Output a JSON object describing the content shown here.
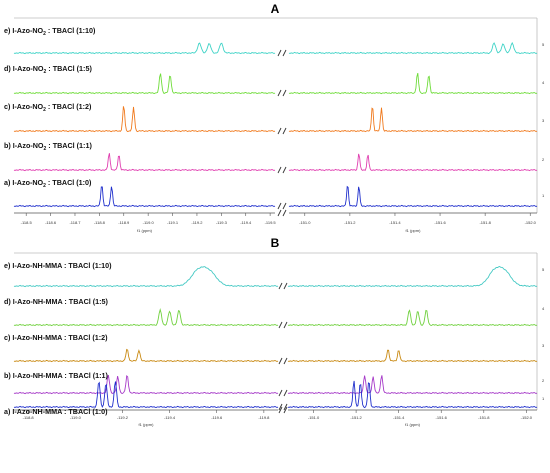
{
  "chart_data": [
    {
      "panel": "A",
      "type": "line",
      "xlabel": "f1 (ppm)",
      "x_ranges": [
        [
          -118.45,
          -119.52
        ],
        [
          -150.93,
          -152.03
        ]
      ],
      "ticks_left": [
        "-118.5",
        "-118.6",
        "-118.7",
        "-118.8",
        "-118.9",
        "-119.0",
        "-119.1",
        "-119.2",
        "-119.3",
        "-119.4",
        "-119.5"
      ],
      "ticks_right": [
        "-151.0",
        "-151.2",
        "-151.4",
        "-151.6",
        "-151.8",
        "-152.0"
      ],
      "right_axis_labels": [
        "5",
        "4",
        "3",
        "2",
        "1"
      ],
      "series": [
        {
          "name": "e) I-Azo-NO2 : TBACl (1:10)",
          "label_main": "e) I-Azo-NO",
          "label_sub": "2",
          "label_tail": " : TBACl (1:10)",
          "color": "#3fd3c7",
          "peaks_left": [
            -119.21,
            -119.25,
            -119.3
          ],
          "peaks_right": [
            -151.84,
            -151.88,
            -151.92
          ],
          "height": 10,
          "width": 0.014
        },
        {
          "name": "d) I-Azo-NO2 : TBACl (1:5)",
          "label_main": "d) I-Azo-NO",
          "label_sub": "2",
          "label_tail": " : TBACl (1:5)",
          "color": "#6fdc3a",
          "peaks_left": [
            -119.05,
            -119.09
          ],
          "peaks_right": [
            -151.5,
            -151.55
          ],
          "height": 20,
          "width": 0.009
        },
        {
          "name": "c) I-Azo-NO2 : TBACl (1:2)",
          "label_main": "c) I-Azo-NO",
          "label_sub": "2",
          "label_tail": " : TBACl (1:2)",
          "color": "#f07a1e",
          "peaks_left": [
            -118.9,
            -118.94
          ],
          "peaks_right": [
            -151.3,
            -151.34
          ],
          "height": 26,
          "width": 0.008
        },
        {
          "name": "b) I-Azo-NO2 : TBACl (1:1)",
          "label_main": "b) I-Azo-NO",
          "label_sub": "2",
          "label_tail": " : TBACl (1:1)",
          "color": "#e03fb0",
          "peaks_left": [
            -118.84,
            -118.88
          ],
          "peaks_right": [
            -151.24,
            -151.28
          ],
          "height": 17,
          "width": 0.008
        },
        {
          "name": "a) I-Azo-NO2 : TBACl (1:0)",
          "label_main": "a) I-Azo-NO",
          "label_sub": "2",
          "label_tail": " : TBACl (1:0)",
          "color": "#1f2fcc",
          "peaks_left": [
            -118.81,
            -118.85
          ],
          "peaks_right": [
            -151.19,
            -151.24
          ],
          "height": 22,
          "width": 0.008
        }
      ]
    },
    {
      "panel": "B",
      "type": "line",
      "xlabel": "f1 (ppm)",
      "x_ranges": [
        [
          -118.74,
          -119.86
        ],
        [
          -150.88,
          -152.05
        ]
      ],
      "ticks_left": [
        "-118.8",
        "-119.0",
        "-119.2",
        "-119.4",
        "-119.6",
        "-119.8"
      ],
      "ticks_right": [
        "-151.0",
        "-151.2",
        "-151.4",
        "-151.6",
        "-151.8",
        "-152.0"
      ],
      "right_axis_labels": [
        "5",
        "4",
        "3",
        "2",
        "1"
      ],
      "series": [
        {
          "name": "e) I-Azo-NH-MMA : TBACl (1:10)",
          "label_main": "e) I-Azo-NH-MMA : TBACl (1:10)",
          "label_sub": "",
          "label_tail": "",
          "color": "#45c9c4",
          "peaks_left": [
            -119.52,
            -119.57
          ],
          "peaks_right": [
            -151.85,
            -151.9
          ],
          "height": 14,
          "width": 0.06
        },
        {
          "name": "d) I-Azo-NH-MMA : TBACl (1:5)",
          "label_main": "d) I-Azo-NH-MMA : TBACl (1:5)",
          "label_sub": "",
          "label_tail": "",
          "color": "#71d13f",
          "peaks_left": [
            -119.36,
            -119.4,
            -119.44
          ],
          "peaks_right": [
            -151.45,
            -151.49,
            -151.53
          ],
          "height": 15,
          "width": 0.012
        },
        {
          "name": "c) I-Azo-NH-MMA : TBACl (1:2)",
          "label_main": "c) I-Azo-NH-MMA : TBACl (1:2)",
          "label_sub": "",
          "label_tail": "",
          "color": "#c98a14",
          "peaks_left": [
            -119.22,
            -119.27
          ],
          "peaks_right": [
            -151.35,
            -151.4
          ],
          "height": 12,
          "width": 0.01
        },
        {
          "name": "b) I-Azo-NH-MMA : TBACl (1:1)",
          "label_main": "b) I-Azo-NH-MMA : TBACl (1:1)",
          "label_sub": "",
          "label_tail": "",
          "color": "#a63ac8",
          "peaks_left": [
            -119.14,
            -119.18,
            -119.22
          ],
          "peaks_right": [
            -151.24,
            -151.28,
            -151.32
          ],
          "height": 18,
          "width": 0.01
        },
        {
          "name": "a) I-Azo-NH-MMA : TBACl (1:0)",
          "label_main": "a) I-Azo-NH-MMA : TBACl (1:0)",
          "label_sub": "",
          "label_tail": "",
          "color": "#1f2fcc",
          "peaks_left": [
            -119.1,
            -119.13,
            -119.17
          ],
          "peaks_right": [
            -151.19,
            -151.22,
            -151.26
          ],
          "height": 26,
          "width": 0.01
        }
      ]
    }
  ]
}
